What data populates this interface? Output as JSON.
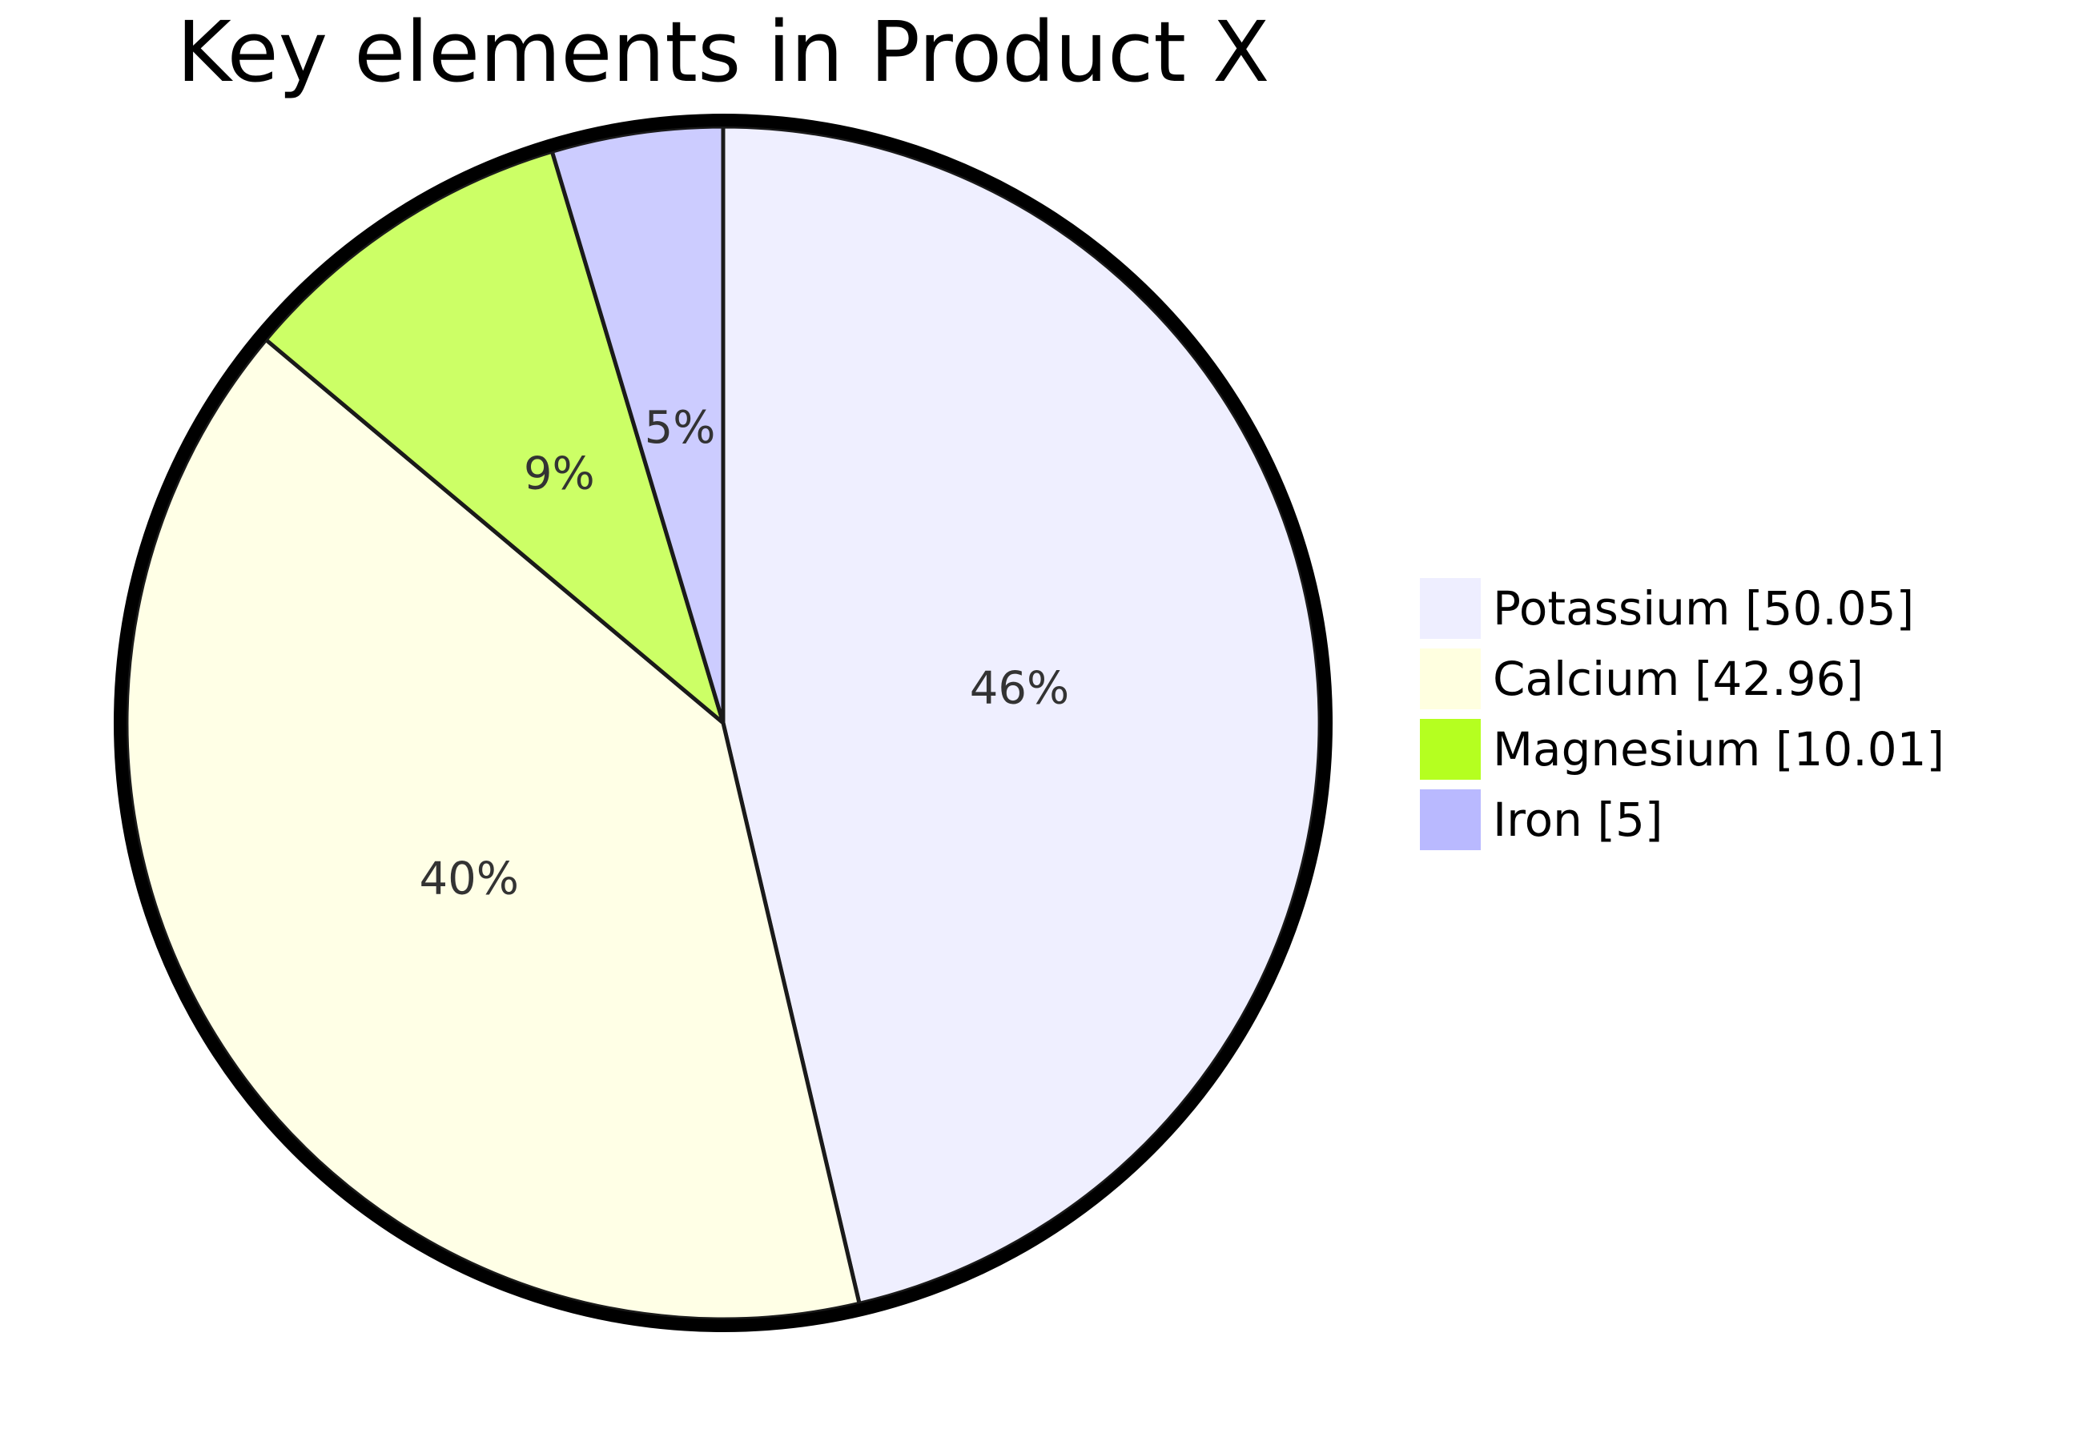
{
  "chart_data": {
    "type": "pie",
    "title": "Key elements in Product X",
    "slices": [
      {
        "label": "Potassium",
        "value": 50.05,
        "percent_label": "46%",
        "legend_text": "Potassium [50.05]",
        "color": "#efefff"
      },
      {
        "label": "Calcium",
        "value": 42.96,
        "percent_label": "40%",
        "legend_text": "Calcium [42.96]",
        "color": "#ffffe6"
      },
      {
        "label": "Magnesium",
        "value": 10.01,
        "percent_label": "9%",
        "legend_text": "Magnesium [10.01]",
        "color": "#ccff66"
      },
      {
        "label": "Iron",
        "value": 5,
        "percent_label": "5%",
        "legend_text": "Iron [5]",
        "color": "#ccccff"
      }
    ],
    "legend_swatch_colors": [
      "#eeeeff",
      "#ffffe0",
      "#b5ff20",
      "#b9b9ff"
    ],
    "legend_placement": "right",
    "start_angle": "12 o'clock",
    "direction": "clockwise"
  },
  "colors": {
    "outline": "#000000",
    "slice_border": "#1a1a1a",
    "label_text": "#333333",
    "legend_text": "#000000",
    "background": "#ffffff"
  }
}
